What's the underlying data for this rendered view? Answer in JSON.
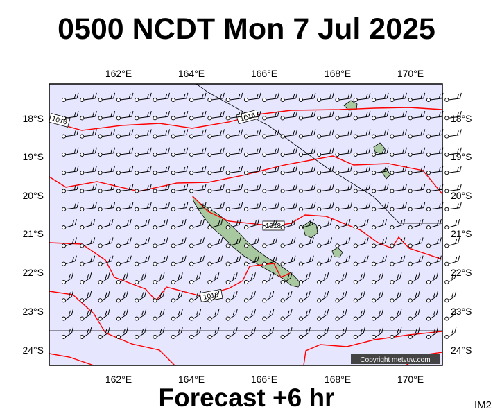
{
  "title": "0500 NCDT Mon 7 Jul 2025",
  "footer": "Forecast +6 hr",
  "image_code": "IM2",
  "copyright": "Copyright metvuw.com",
  "lon_labels": [
    "162°E",
    "164°E",
    "166°E",
    "168°E",
    "170°E"
  ],
  "lat_labels": [
    "18°S",
    "19°S",
    "20°S",
    "21°S",
    "22°S",
    "23°S",
    "24°S"
  ],
  "isobar_labels": [
    "1016",
    "1016",
    "1018",
    "1018"
  ],
  "colors": {
    "ocean": "#e6e6ff",
    "isobar": "#ff0000",
    "land": "#a8c8a0",
    "frame": "#000000"
  }
}
